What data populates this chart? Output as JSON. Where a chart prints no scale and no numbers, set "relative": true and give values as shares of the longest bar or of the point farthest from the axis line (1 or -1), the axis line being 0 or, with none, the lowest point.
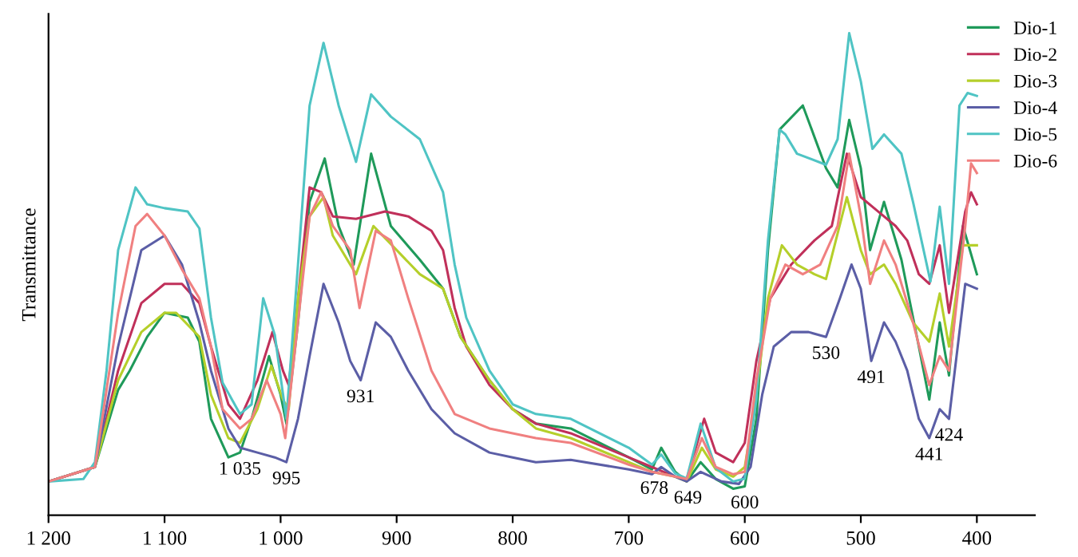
{
  "chart_data": {
    "type": "line",
    "relative": true,
    "ylabel": "Transmittance",
    "xlim": [
      1200,
      350
    ],
    "xticks": [
      {
        "value": 1200,
        "label": "1 200"
      },
      {
        "value": 1100,
        "label": "1 100"
      },
      {
        "value": 1000,
        "label": "1 000"
      },
      900,
      800,
      700,
      600,
      500,
      400
    ],
    "legend": "top right",
    "grid": false,
    "marker": "none",
    "line_style": "solid",
    "annotations": [
      {
        "text": "1 035",
        "x": 1035,
        "y": 0.13
      },
      {
        "text": "995",
        "x": 995,
        "y": 0.11
      },
      {
        "text": "931",
        "x": 931,
        "y": 0.28
      },
      {
        "text": "678",
        "x": 678,
        "y": 0.09
      },
      {
        "text": "649",
        "x": 649,
        "y": 0.07
      },
      {
        "text": "600",
        "x": 600,
        "y": 0.06
      },
      {
        "text": "530",
        "x": 530,
        "y": 0.37
      },
      {
        "text": "491",
        "x": 491,
        "y": 0.32
      },
      {
        "text": "441",
        "x": 441,
        "y": 0.16
      },
      {
        "text": "424",
        "x": 424,
        "y": 0.2
      }
    ],
    "series": [
      {
        "name": "Dio-1",
        "color": "#1f9a5a",
        "x": [
          1200,
          1160,
          1140,
          1130,
          1115,
          1100,
          1080,
          1070,
          1060,
          1045,
          1035,
          1025,
          1010,
          1000,
          995,
          985,
          975,
          962,
          950,
          937,
          922,
          905,
          880,
          860,
          845,
          820,
          800,
          780,
          750,
          700,
          680,
          672,
          660,
          650,
          638,
          625,
          610,
          600,
          590,
          580,
          570,
          550,
          530,
          520,
          510,
          500,
          492,
          480,
          465,
          450,
          441,
          432,
          424,
          412,
          400
        ],
        "values": [
          0.07,
          0.1,
          0.26,
          0.3,
          0.37,
          0.42,
          0.41,
          0.36,
          0.2,
          0.12,
          0.13,
          0.2,
          0.33,
          0.25,
          0.19,
          0.4,
          0.65,
          0.74,
          0.6,
          0.52,
          0.75,
          0.6,
          0.53,
          0.47,
          0.37,
          0.28,
          0.22,
          0.19,
          0.18,
          0.12,
          0.095,
          0.14,
          0.09,
          0.07,
          0.11,
          0.075,
          0.055,
          0.06,
          0.2,
          0.55,
          0.8,
          0.85,
          0.72,
          0.68,
          0.82,
          0.72,
          0.55,
          0.65,
          0.53,
          0.35,
          0.24,
          0.4,
          0.29,
          0.6,
          0.5
        ]
      },
      {
        "name": "Dio-2",
        "color": "#c0305a",
        "x": [
          1200,
          1160,
          1140,
          1120,
          1100,
          1085,
          1070,
          1060,
          1045,
          1035,
          1020,
          1007,
          998,
          993,
          985,
          975,
          965,
          955,
          935,
          910,
          890,
          870,
          860,
          850,
          840,
          820,
          800,
          780,
          750,
          700,
          680,
          660,
          650,
          635,
          625,
          610,
          600,
          590,
          578,
          560,
          540,
          525,
          512,
          500,
          485,
          470,
          460,
          450,
          441,
          432,
          424,
          410,
          405,
          400
        ],
        "values": [
          0.07,
          0.1,
          0.3,
          0.44,
          0.48,
          0.48,
          0.44,
          0.35,
          0.23,
          0.2,
          0.28,
          0.38,
          0.3,
          0.27,
          0.45,
          0.68,
          0.67,
          0.62,
          0.615,
          0.63,
          0.62,
          0.59,
          0.55,
          0.43,
          0.35,
          0.27,
          0.22,
          0.19,
          0.17,
          0.12,
          0.1,
          0.08,
          0.075,
          0.2,
          0.13,
          0.11,
          0.15,
          0.32,
          0.45,
          0.52,
          0.57,
          0.6,
          0.75,
          0.66,
          0.63,
          0.6,
          0.57,
          0.5,
          0.48,
          0.56,
          0.42,
          0.63,
          0.67,
          0.645
        ]
      },
      {
        "name": "Dio-3",
        "color": "#b5cf2a",
        "x": [
          1200,
          1160,
          1140,
          1120,
          1100,
          1090,
          1070,
          1060,
          1045,
          1035,
          1020,
          1008,
          998,
          993,
          985,
          975,
          963,
          955,
          935,
          920,
          900,
          880,
          860,
          845,
          820,
          800,
          780,
          750,
          700,
          680,
          660,
          650,
          637,
          625,
          610,
          600,
          590,
          580,
          568,
          555,
          540,
          530,
          512,
          500,
          492,
          480,
          470,
          455,
          441,
          432,
          424,
          412,
          400
        ],
        "values": [
          0.07,
          0.1,
          0.28,
          0.38,
          0.42,
          0.42,
          0.37,
          0.25,
          0.16,
          0.15,
          0.22,
          0.31,
          0.24,
          0.22,
          0.45,
          0.62,
          0.66,
          0.58,
          0.5,
          0.6,
          0.55,
          0.5,
          0.47,
          0.37,
          0.28,
          0.22,
          0.18,
          0.16,
          0.11,
          0.09,
          0.08,
          0.07,
          0.14,
          0.095,
          0.08,
          0.1,
          0.25,
          0.45,
          0.56,
          0.52,
          0.5,
          0.49,
          0.66,
          0.55,
          0.5,
          0.52,
          0.48,
          0.4,
          0.36,
          0.46,
          0.35,
          0.56,
          0.56
        ]
      },
      {
        "name": "Dio-4",
        "color": "#5b5ea6",
        "x": [
          1200,
          1160,
          1140,
          1120,
          1100,
          1085,
          1070,
          1060,
          1045,
          1035,
          1020,
          1005,
          995,
          985,
          975,
          963,
          950,
          940,
          931,
          918,
          905,
          890,
          870,
          850,
          820,
          800,
          780,
          750,
          700,
          680,
          672,
          660,
          650,
          638,
          620,
          605,
          595,
          585,
          575,
          560,
          545,
          530,
          518,
          508,
          500,
          491,
          480,
          470,
          460,
          450,
          441,
          432,
          424,
          410,
          400
        ],
        "values": [
          0.07,
          0.1,
          0.35,
          0.55,
          0.58,
          0.52,
          0.4,
          0.3,
          0.18,
          0.14,
          0.13,
          0.12,
          0.11,
          0.2,
          0.33,
          0.48,
          0.4,
          0.32,
          0.28,
          0.4,
          0.37,
          0.3,
          0.22,
          0.17,
          0.13,
          0.12,
          0.11,
          0.115,
          0.095,
          0.085,
          0.1,
          0.08,
          0.07,
          0.09,
          0.07,
          0.065,
          0.1,
          0.25,
          0.35,
          0.38,
          0.38,
          0.37,
          0.45,
          0.52,
          0.47,
          0.32,
          0.4,
          0.36,
          0.3,
          0.2,
          0.16,
          0.22,
          0.2,
          0.48,
          0.47
        ]
      },
      {
        "name": "Dio-5",
        "color": "#4fc4c4",
        "x": [
          1200,
          1170,
          1160,
          1150,
          1140,
          1125,
          1115,
          1100,
          1080,
          1070,
          1060,
          1050,
          1035,
          1025,
          1015,
          1005,
          995,
          985,
          975,
          963,
          950,
          935,
          922,
          905,
          880,
          860,
          850,
          840,
          820,
          800,
          780,
          750,
          700,
          680,
          672,
          660,
          650,
          638,
          625,
          610,
          600,
          590,
          580,
          570,
          565,
          555,
          530,
          520,
          510,
          500,
          490,
          480,
          465,
          455,
          440,
          432,
          424,
          415,
          408,
          400
        ],
        "values": [
          0.07,
          0.075,
          0.11,
          0.3,
          0.55,
          0.68,
          0.645,
          0.637,
          0.63,
          0.595,
          0.41,
          0.275,
          0.21,
          0.23,
          0.45,
          0.374,
          0.2,
          0.52,
          0.85,
          0.98,
          0.85,
          0.733,
          0.873,
          0.827,
          0.78,
          0.67,
          0.52,
          0.41,
          0.3,
          0.23,
          0.21,
          0.2,
          0.14,
          0.105,
          0.126,
          0.087,
          0.076,
          0.19,
          0.098,
          0.07,
          0.076,
          0.24,
          0.57,
          0.8,
          0.79,
          0.75,
          0.727,
          0.78,
          1.0,
          0.9,
          0.76,
          0.79,
          0.75,
          0.65,
          0.485,
          0.64,
          0.48,
          0.85,
          0.876,
          0.87
        ]
      },
      {
        "name": "Dio-6",
        "color": "#f08080",
        "x": [
          1200,
          1160,
          1140,
          1125,
          1115,
          1100,
          1085,
          1070,
          1060,
          1050,
          1035,
          1025,
          1012,
          1000,
          996,
          985,
          975,
          965,
          955,
          940,
          932,
          918,
          905,
          890,
          870,
          850,
          820,
          800,
          780,
          750,
          700,
          680,
          660,
          650,
          637,
          625,
          610,
          600,
          590,
          578,
          565,
          550,
          535,
          520,
          510,
          500,
          492,
          480,
          470,
          455,
          441,
          432,
          424,
          410,
          405,
          400
        ],
        "values": [
          0.07,
          0.1,
          0.42,
          0.6,
          0.625,
          0.58,
          0.51,
          0.45,
          0.35,
          0.22,
          0.18,
          0.2,
          0.28,
          0.21,
          0.16,
          0.4,
          0.62,
          0.67,
          0.6,
          0.55,
          0.43,
          0.59,
          0.57,
          0.45,
          0.3,
          0.21,
          0.18,
          0.17,
          0.16,
          0.15,
          0.105,
          0.09,
          0.08,
          0.075,
          0.16,
          0.1,
          0.085,
          0.09,
          0.28,
          0.45,
          0.52,
          0.5,
          0.52,
          0.6,
          0.75,
          0.62,
          0.48,
          0.57,
          0.52,
          0.4,
          0.27,
          0.33,
          0.3,
          0.6,
          0.73,
          0.71
        ]
      }
    ]
  }
}
